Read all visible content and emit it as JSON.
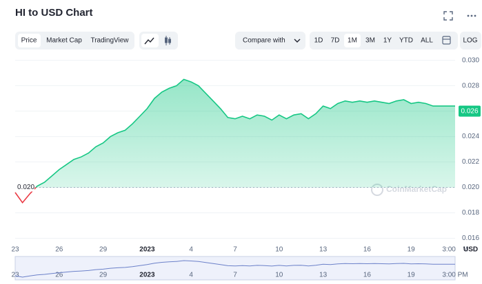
{
  "header": {
    "title": "HI to USD Chart"
  },
  "toolbar": {
    "tabs": [
      "Price",
      "Market Cap",
      "TradingView"
    ],
    "compare": "Compare with",
    "ranges": [
      "1D",
      "7D",
      "1M",
      "3M",
      "1Y",
      "YTD",
      "ALL"
    ],
    "log": "LOG"
  },
  "watermark": "CoinMarketCap",
  "chart_data": {
    "type": "line",
    "categories": [
      "23",
      null,
      null,
      null,
      null,
      null,
      "26",
      null,
      null,
      null,
      null,
      null,
      "29",
      null,
      null,
      null,
      null,
      null,
      "2023",
      null,
      null,
      null,
      null,
      null,
      "4",
      null,
      null,
      null,
      null,
      null,
      "7",
      null,
      null,
      null,
      null,
      null,
      "10",
      null,
      null,
      null,
      null,
      null,
      "13",
      null,
      null,
      null,
      null,
      null,
      "16",
      null,
      null,
      null,
      null,
      null,
      "19",
      null,
      null,
      null,
      null,
      null,
      "3:00 PM"
    ],
    "series": [
      {
        "color": "#16c784",
        "values": [
          0.0196,
          0.0188,
          0.0195,
          0.0201,
          0.0204,
          0.0209,
          0.0214,
          0.0218,
          0.0222,
          0.0224,
          0.0227,
          0.0232,
          0.0235,
          0.024,
          0.0243,
          0.0245,
          0.025,
          0.0256,
          0.0262,
          0.027,
          0.0275,
          0.0278,
          0.028,
          0.0285,
          0.0283,
          0.028,
          0.0274,
          0.0268,
          0.0262,
          0.0255,
          0.0254,
          0.0256,
          0.0254,
          0.0257,
          0.0256,
          0.0253,
          0.0257,
          0.0254,
          0.0257,
          0.0258,
          0.0254,
          0.0258,
          0.0264,
          0.0262,
          0.0266,
          0.0268,
          0.0267,
          0.0268,
          0.0267,
          0.0268,
          0.0267,
          0.0266,
          0.0268,
          0.0269,
          0.0266,
          0.0267,
          0.0266,
          0.0264,
          0.0264,
          0.0264,
          0.0264
        ]
      }
    ],
    "below_color": "#ea3943",
    "baseline": {
      "value": 0.02,
      "label": "0.020"
    },
    "current_price": 0.026,
    "y_unit": "USD",
    "ylim": [
      0.0157,
      0.0302
    ],
    "yticks": [
      0.016,
      0.018,
      {
        "value": 0.02,
        "label": "0.020"
      },
      0.022,
      0.024,
      0.026,
      0.028,
      {
        "value": 0.03,
        "label": "0.030"
      }
    ],
    "grid": true
  }
}
